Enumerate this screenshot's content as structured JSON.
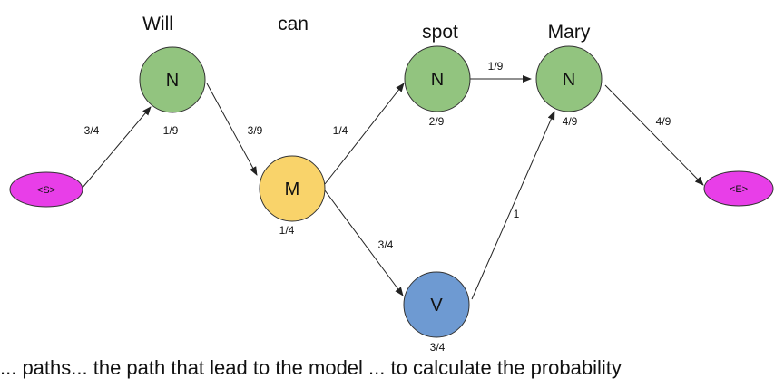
{
  "diagram": {
    "words": {
      "will": "Will",
      "can": "can",
      "spot": "spot",
      "mary": "Mary"
    },
    "nodes": {
      "start": {
        "label": "<S>",
        "color": "#e83ee8"
      },
      "n1": {
        "label": "N",
        "color": "#92c47f"
      },
      "m": {
        "label": "M",
        "color": "#f9d36a"
      },
      "n2": {
        "label": "N",
        "color": "#92c47f"
      },
      "v": {
        "label": "V",
        "color": "#6e9ad2"
      },
      "n3": {
        "label": "N",
        "color": "#92c47f"
      },
      "end": {
        "label": "<E>",
        "color": "#e83ee8"
      }
    },
    "emission_probs": {
      "n1": "1/9",
      "m": "1/4",
      "n2": "2/9",
      "v": "3/4",
      "n3": "4/9"
    },
    "transition_probs": {
      "start_n1": "3/4",
      "n1_m": "3/9",
      "m_n2": "1/4",
      "m_v": "3/4",
      "n2_n3": "1/9",
      "v_n3": "1",
      "n3_end": "4/9"
    }
  },
  "caption_cut": "... paths... the path that lead to the model ... to calculate the probability"
}
